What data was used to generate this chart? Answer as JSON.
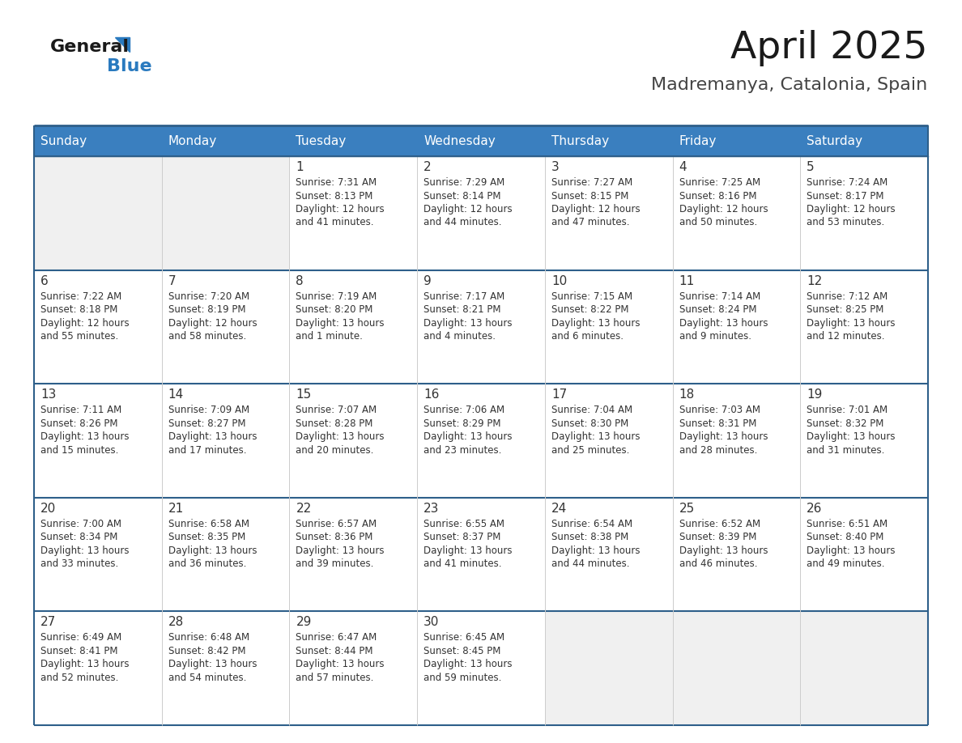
{
  "title": "April 2025",
  "subtitle": "Madremanya, Catalonia, Spain",
  "days_of_week": [
    "Sunday",
    "Monday",
    "Tuesday",
    "Wednesday",
    "Thursday",
    "Friday",
    "Saturday"
  ],
  "header_bg": "#3a7fbf",
  "header_text": "#ffffff",
  "cell_bg_white": "#ffffff",
  "cell_bg_light": "#f0f0f0",
  "row_divider_color": "#2e5f8a",
  "outer_border_color": "#2e5f8a",
  "text_color": "#333333",
  "title_color": "#1a1a1a",
  "subtitle_color": "#444444",
  "logo_general_color": "#1a1a1a",
  "logo_blue_color": "#2a7abf",
  "calendar": [
    [
      {
        "day": "",
        "sunrise": "",
        "sunset": "",
        "daylight": ""
      },
      {
        "day": "",
        "sunrise": "",
        "sunset": "",
        "daylight": ""
      },
      {
        "day": "1",
        "sunrise": "7:31 AM",
        "sunset": "8:13 PM",
        "daylight": "12 hours and 41 minutes."
      },
      {
        "day": "2",
        "sunrise": "7:29 AM",
        "sunset": "8:14 PM",
        "daylight": "12 hours and 44 minutes."
      },
      {
        "day": "3",
        "sunrise": "7:27 AM",
        "sunset": "8:15 PM",
        "daylight": "12 hours and 47 minutes."
      },
      {
        "day": "4",
        "sunrise": "7:25 AM",
        "sunset": "8:16 PM",
        "daylight": "12 hours and 50 minutes."
      },
      {
        "day": "5",
        "sunrise": "7:24 AM",
        "sunset": "8:17 PM",
        "daylight": "12 hours and 53 minutes."
      }
    ],
    [
      {
        "day": "6",
        "sunrise": "7:22 AM",
        "sunset": "8:18 PM",
        "daylight": "12 hours and 55 minutes."
      },
      {
        "day": "7",
        "sunrise": "7:20 AM",
        "sunset": "8:19 PM",
        "daylight": "12 hours and 58 minutes."
      },
      {
        "day": "8",
        "sunrise": "7:19 AM",
        "sunset": "8:20 PM",
        "daylight": "13 hours and 1 minute."
      },
      {
        "day": "9",
        "sunrise": "7:17 AM",
        "sunset": "8:21 PM",
        "daylight": "13 hours and 4 minutes."
      },
      {
        "day": "10",
        "sunrise": "7:15 AM",
        "sunset": "8:22 PM",
        "daylight": "13 hours and 6 minutes."
      },
      {
        "day": "11",
        "sunrise": "7:14 AM",
        "sunset": "8:24 PM",
        "daylight": "13 hours and 9 minutes."
      },
      {
        "day": "12",
        "sunrise": "7:12 AM",
        "sunset": "8:25 PM",
        "daylight": "13 hours and 12 minutes."
      }
    ],
    [
      {
        "day": "13",
        "sunrise": "7:11 AM",
        "sunset": "8:26 PM",
        "daylight": "13 hours and 15 minutes."
      },
      {
        "day": "14",
        "sunrise": "7:09 AM",
        "sunset": "8:27 PM",
        "daylight": "13 hours and 17 minutes."
      },
      {
        "day": "15",
        "sunrise": "7:07 AM",
        "sunset": "8:28 PM",
        "daylight": "13 hours and 20 minutes."
      },
      {
        "day": "16",
        "sunrise": "7:06 AM",
        "sunset": "8:29 PM",
        "daylight": "13 hours and 23 minutes."
      },
      {
        "day": "17",
        "sunrise": "7:04 AM",
        "sunset": "8:30 PM",
        "daylight": "13 hours and 25 minutes."
      },
      {
        "day": "18",
        "sunrise": "7:03 AM",
        "sunset": "8:31 PM",
        "daylight": "13 hours and 28 minutes."
      },
      {
        "day": "19",
        "sunrise": "7:01 AM",
        "sunset": "8:32 PM",
        "daylight": "13 hours and 31 minutes."
      }
    ],
    [
      {
        "day": "20",
        "sunrise": "7:00 AM",
        "sunset": "8:34 PM",
        "daylight": "13 hours and 33 minutes."
      },
      {
        "day": "21",
        "sunrise": "6:58 AM",
        "sunset": "8:35 PM",
        "daylight": "13 hours and 36 minutes."
      },
      {
        "day": "22",
        "sunrise": "6:57 AM",
        "sunset": "8:36 PM",
        "daylight": "13 hours and 39 minutes."
      },
      {
        "day": "23",
        "sunrise": "6:55 AM",
        "sunset": "8:37 PM",
        "daylight": "13 hours and 41 minutes."
      },
      {
        "day": "24",
        "sunrise": "6:54 AM",
        "sunset": "8:38 PM",
        "daylight": "13 hours and 44 minutes."
      },
      {
        "day": "25",
        "sunrise": "6:52 AM",
        "sunset": "8:39 PM",
        "daylight": "13 hours and 46 minutes."
      },
      {
        "day": "26",
        "sunrise": "6:51 AM",
        "sunset": "8:40 PM",
        "daylight": "13 hours and 49 minutes."
      }
    ],
    [
      {
        "day": "27",
        "sunrise": "6:49 AM",
        "sunset": "8:41 PM",
        "daylight": "13 hours and 52 minutes."
      },
      {
        "day": "28",
        "sunrise": "6:48 AM",
        "sunset": "8:42 PM",
        "daylight": "13 hours and 54 minutes."
      },
      {
        "day": "29",
        "sunrise": "6:47 AM",
        "sunset": "8:44 PM",
        "daylight": "13 hours and 57 minutes."
      },
      {
        "day": "30",
        "sunrise": "6:45 AM",
        "sunset": "8:45 PM",
        "daylight": "13 hours and 59 minutes."
      },
      {
        "day": "",
        "sunrise": "",
        "sunset": "",
        "daylight": ""
      },
      {
        "day": "",
        "sunrise": "",
        "sunset": "",
        "daylight": ""
      },
      {
        "day": "",
        "sunrise": "",
        "sunset": "",
        "daylight": ""
      }
    ]
  ]
}
